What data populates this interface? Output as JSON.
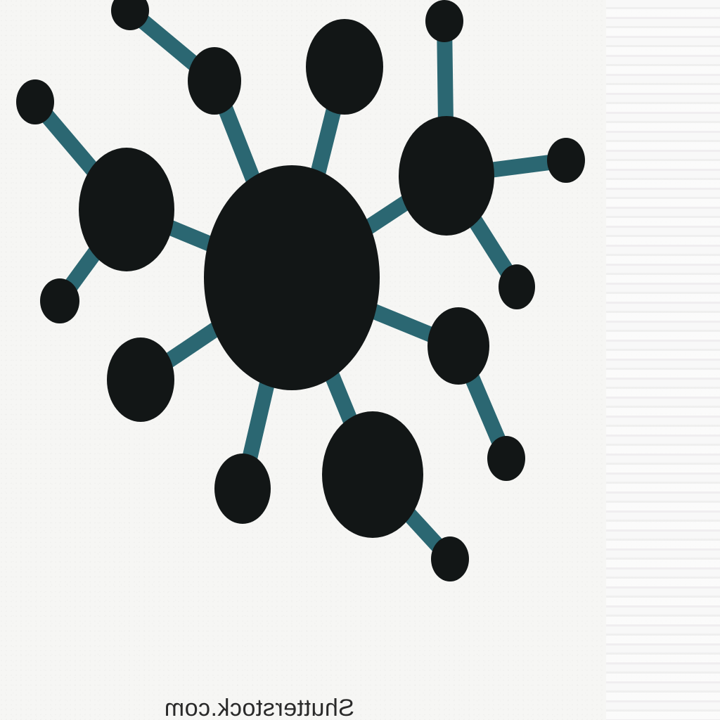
{
  "image": {
    "subject": "molecule-network-icon",
    "colors": {
      "node": "#121616",
      "bond": "#2b6772",
      "background": "#f6f6f4"
    }
  },
  "watermark": {
    "text": "Shutterstock.com"
  }
}
